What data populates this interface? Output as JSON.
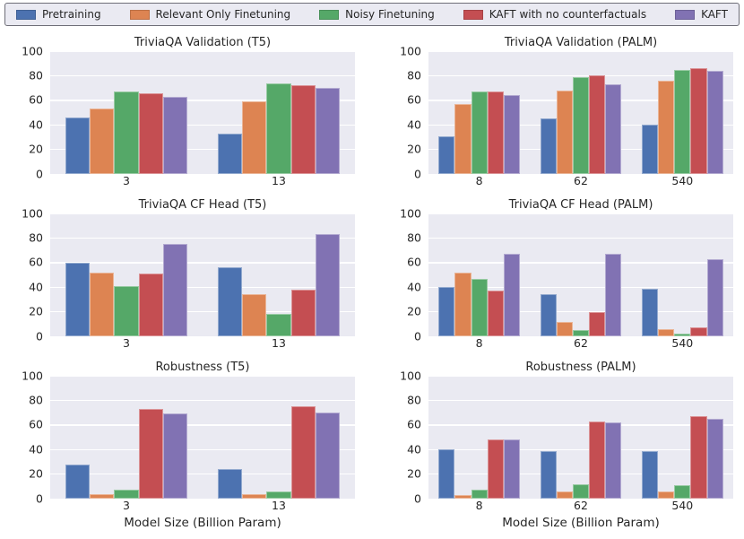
{
  "legend": {
    "items": [
      {
        "label": "Pretraining",
        "color": "#4C72B0"
      },
      {
        "label": "Relevant Only Finetuning",
        "color": "#DD8452"
      },
      {
        "label": "Noisy Finetuning",
        "color": "#55A868"
      },
      {
        "label": "KAFT with no counterfactuals",
        "color": "#C44E52"
      },
      {
        "label": "KAFT",
        "color": "#8172B3"
      }
    ]
  },
  "style_colors": {
    "axes_background": "#eaeaf2",
    "gridline": "#ffffff",
    "text": "#262626"
  },
  "chart_data": [
    {
      "type": "bar",
      "title": "TriviaQA Validation (T5)",
      "categories": [
        "3",
        "13"
      ],
      "series": [
        {
          "name": "Pretraining",
          "values": [
            46,
            33
          ]
        },
        {
          "name": "Relevant Only Finetuning",
          "values": [
            53,
            59
          ]
        },
        {
          "name": "Noisy Finetuning",
          "values": [
            67,
            74
          ]
        },
        {
          "name": "KAFT with no counterfactuals",
          "values": [
            66,
            72
          ]
        },
        {
          "name": "KAFT",
          "values": [
            63,
            70
          ]
        }
      ],
      "ylim": [
        0,
        100
      ],
      "yticks": [
        0,
        20,
        40,
        60,
        80,
        100
      ],
      "xlabel": ""
    },
    {
      "type": "bar",
      "title": "TriviaQA Validation (PALM)",
      "categories": [
        "8",
        "62",
        "540"
      ],
      "series": [
        {
          "name": "Pretraining",
          "values": [
            31,
            45,
            40
          ]
        },
        {
          "name": "Relevant Only Finetuning",
          "values": [
            57,
            68,
            76
          ]
        },
        {
          "name": "Noisy Finetuning",
          "values": [
            67,
            79,
            85
          ]
        },
        {
          "name": "KAFT with no counterfactuals",
          "values": [
            67,
            80,
            86
          ]
        },
        {
          "name": "KAFT",
          "values": [
            64,
            73,
            84
          ]
        }
      ],
      "ylim": [
        0,
        100
      ],
      "yticks": [
        0,
        20,
        40,
        60,
        80,
        100
      ],
      "xlabel": ""
    },
    {
      "type": "bar",
      "title": "TriviaQA CF Head (T5)",
      "categories": [
        "3",
        "13"
      ],
      "series": [
        {
          "name": "Pretraining",
          "values": [
            60,
            56
          ]
        },
        {
          "name": "Relevant Only Finetuning",
          "values": [
            52,
            34
          ]
        },
        {
          "name": "Noisy Finetuning",
          "values": [
            41,
            18
          ]
        },
        {
          "name": "KAFT with no counterfactuals",
          "values": [
            51,
            38
          ]
        },
        {
          "name": "KAFT",
          "values": [
            75,
            83
          ]
        }
      ],
      "ylim": [
        0,
        100
      ],
      "yticks": [
        0,
        20,
        40,
        60,
        80,
        100
      ],
      "xlabel": ""
    },
    {
      "type": "bar",
      "title": "TriviaQA CF Head (PALM)",
      "categories": [
        "8",
        "62",
        "540"
      ],
      "series": [
        {
          "name": "Pretraining",
          "values": [
            40,
            34,
            39
          ]
        },
        {
          "name": "Relevant Only Finetuning",
          "values": [
            52,
            12,
            6
          ]
        },
        {
          "name": "Noisy Finetuning",
          "values": [
            47,
            5,
            2
          ]
        },
        {
          "name": "KAFT with no counterfactuals",
          "values": [
            37,
            20,
            7
          ]
        },
        {
          "name": "KAFT",
          "values": [
            67,
            67,
            63
          ]
        }
      ],
      "ylim": [
        0,
        100
      ],
      "yticks": [
        0,
        20,
        40,
        60,
        80,
        100
      ],
      "xlabel": ""
    },
    {
      "type": "bar",
      "title": "Robustness (T5)",
      "categories": [
        "3",
        "13"
      ],
      "series": [
        {
          "name": "Pretraining",
          "values": [
            28,
            24
          ]
        },
        {
          "name": "Relevant Only Finetuning",
          "values": [
            4,
            4
          ]
        },
        {
          "name": "Noisy Finetuning",
          "values": [
            7,
            6
          ]
        },
        {
          "name": "KAFT with no counterfactuals",
          "values": [
            73,
            75
          ]
        },
        {
          "name": "KAFT",
          "values": [
            69,
            70
          ]
        }
      ],
      "ylim": [
        0,
        100
      ],
      "yticks": [
        0,
        20,
        40,
        60,
        80,
        100
      ],
      "xlabel": "Model Size (Billion Param)"
    },
    {
      "type": "bar",
      "title": "Robustness (PALM)",
      "categories": [
        "8",
        "62",
        "540"
      ],
      "series": [
        {
          "name": "Pretraining",
          "values": [
            40,
            39,
            39
          ]
        },
        {
          "name": "Relevant Only Finetuning",
          "values": [
            3,
            6,
            6
          ]
        },
        {
          "name": "Noisy Finetuning",
          "values": [
            7,
            12,
            11
          ]
        },
        {
          "name": "KAFT with no counterfactuals",
          "values": [
            48,
            63,
            67
          ]
        },
        {
          "name": "KAFT",
          "values": [
            48,
            62,
            65
          ]
        }
      ],
      "ylim": [
        0,
        100
      ],
      "yticks": [
        0,
        20,
        40,
        60,
        80,
        100
      ],
      "xlabel": "Model Size (Billion Param)"
    }
  ]
}
